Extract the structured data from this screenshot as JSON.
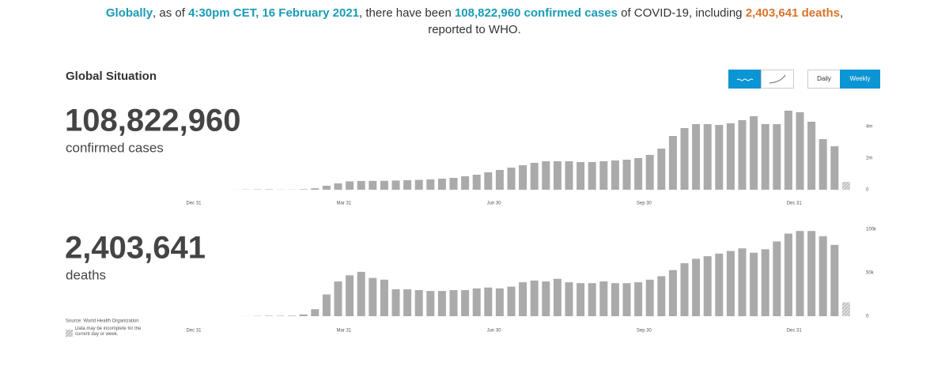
{
  "header": {
    "line1": [
      {
        "text": "Globally",
        "color": "#1a9bb5"
      },
      {
        "text": ", as of "
      },
      {
        "text": "4:30pm CET, 16 February 2021",
        "color": "#1a9bb5"
      },
      {
        "text": ", there have been "
      },
      {
        "text": "108,822,960 confirmed cases",
        "color": "#1a9bb5"
      },
      {
        "text": " of COVID-19, including "
      },
      {
        "text": "2,403,641 deaths",
        "color": "#d9742b"
      },
      {
        "text": ","
      }
    ],
    "line2": "reported to WHO."
  },
  "panel": {
    "title": "Global Situation",
    "buttons": [
      "Daily",
      "Weekly"
    ],
    "source": "Source: World Health Organization",
    "note": "Data may be incomplete for the current day or week."
  },
  "chart_data": [
    {
      "type": "bar",
      "headline": "108,822,960",
      "caption": "confirmed cases",
      "color": "#aaaaaa",
      "categories": [
        "Dec 31",
        null,
        null,
        null,
        null,
        null,
        null,
        null,
        null,
        null,
        null,
        null,
        null,
        "Mar 31",
        null,
        null,
        null,
        null,
        null,
        null,
        null,
        null,
        null,
        null,
        null,
        null,
        "Jun 30",
        null,
        null,
        null,
        null,
        null,
        null,
        null,
        null,
        null,
        null,
        null,
        null,
        "Sep 30",
        null,
        null,
        null,
        null,
        null,
        null,
        null,
        null,
        null,
        null,
        null,
        null,
        "Dec 31",
        null,
        null,
        null,
        null
      ],
      "values": [
        0,
        0,
        0,
        4000,
        15000,
        20000,
        25000,
        10000,
        10000,
        30000,
        90000,
        250000,
        400000,
        530000,
        550000,
        560000,
        560000,
        580000,
        600000,
        620000,
        650000,
        700000,
        750000,
        850000,
        950000,
        1100000,
        1250000,
        1400000,
        1550000,
        1700000,
        1800000,
        1800000,
        1800000,
        1750000,
        1750000,
        1800000,
        1850000,
        1900000,
        2000000,
        2200000,
        2600000,
        3400000,
        3900000,
        4150000,
        4150000,
        4100000,
        4200000,
        4400000,
        4650000,
        4150000,
        4150000,
        5000000,
        4900000,
        4300000,
        3200000,
        2750000,
        500000
      ],
      "ylim": [
        0,
        5000000
      ],
      "yticks": [
        0,
        {
          "value": 2000000,
          "label": "2m"
        },
        {
          "value": 4000000,
          "label": "4m"
        }
      ]
    },
    {
      "type": "bar",
      "headline": "2,403,641",
      "caption": "deaths",
      "color": "#aaaaaa",
      "categories": [
        "Dec 31",
        null,
        null,
        null,
        null,
        null,
        null,
        null,
        null,
        null,
        null,
        null,
        null,
        "Mar 31",
        null,
        null,
        null,
        null,
        null,
        null,
        null,
        null,
        null,
        null,
        null,
        null,
        "Jun 30",
        null,
        null,
        null,
        null,
        null,
        null,
        null,
        null,
        null,
        null,
        null,
        null,
        "Sep 30",
        null,
        null,
        null,
        null,
        null,
        null,
        null,
        null,
        null,
        null,
        null,
        null,
        "Dec 31",
        null,
        null,
        null,
        null
      ],
      "values": [
        0,
        0,
        0,
        0,
        100,
        300,
        500,
        500,
        600,
        2000,
        8000,
        25000,
        40000,
        47000,
        51000,
        44000,
        42000,
        31000,
        31000,
        30000,
        29000,
        29000,
        30000,
        30000,
        32000,
        33000,
        32000,
        34000,
        39000,
        41000,
        40000,
        43000,
        39000,
        38000,
        38000,
        40000,
        38000,
        38000,
        39000,
        42000,
        46000,
        53000,
        61000,
        66000,
        69000,
        72000,
        75000,
        78000,
        73000,
        77000,
        86000,
        95000,
        98000,
        98000,
        92000,
        82000,
        16000
      ],
      "ylim": [
        0,
        100000
      ],
      "yticks": [
        0,
        {
          "value": 50000,
          "label": "50k"
        },
        {
          "value": 100000,
          "label": "100k"
        }
      ]
    }
  ]
}
